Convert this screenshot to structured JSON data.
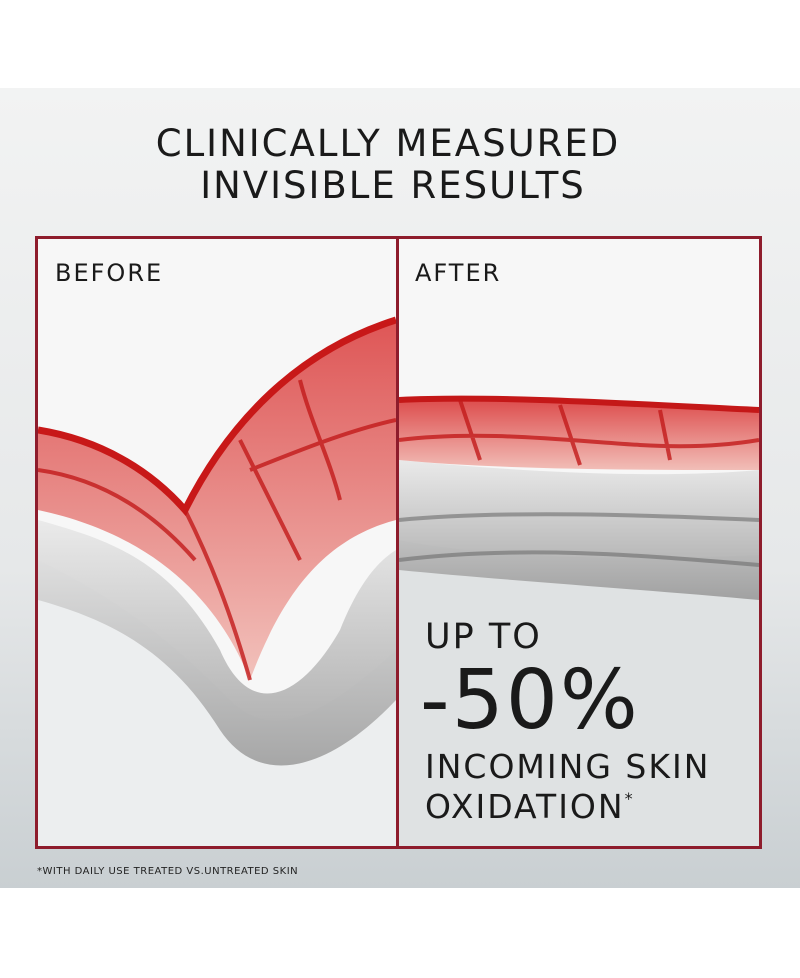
{
  "header": {
    "title_lines": [
      "CLINICALLY MEASURED",
      "INVISIBLE RESULTS"
    ]
  },
  "panels": [
    {
      "label": "BEFORE"
    },
    {
      "label": "AFTER"
    }
  ],
  "claim": {
    "lead": "UP TO",
    "figure": "-50%",
    "lines": [
      "INCOMING SKIN",
      "OXIDATION"
    ],
    "footnote_mark": "*"
  },
  "footnote": "*WITH DAILY USE TREATED VS.UNTREATED SKIN"
}
